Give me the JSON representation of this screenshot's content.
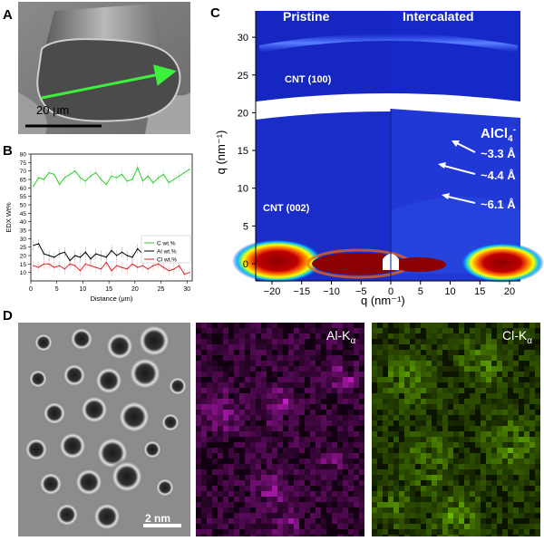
{
  "panels": {
    "a": {
      "letter": "A",
      "scale_bar": "20 μm"
    },
    "b": {
      "letter": "B"
    },
    "c": {
      "letter": "C",
      "label_left": "Pristine",
      "label_right": "Intercalated",
      "ring_100": "CNT (100)",
      "ring_002": "CNT (002)",
      "species": "AlCl",
      "species_sub": "4",
      "species_sup": "-",
      "spacings": [
        "~3.3 Å",
        "~4.4 Å",
        "~6.1 Å"
      ],
      "xlabel": "q (nm⁻¹)",
      "ylabel": "q (nm⁻¹)",
      "xticks": [
        "−20",
        "−15",
        "−10",
        "−5",
        "0",
        "5",
        "10",
        "15",
        "20"
      ],
      "yticks": [
        "0",
        "5",
        "10",
        "15",
        "20",
        "25",
        "30"
      ]
    },
    "d": {
      "letter": "D",
      "scale_bar": "2 nm",
      "map_al": "Al-K",
      "map_al_sub": "α",
      "map_cl": "Cl-K",
      "map_cl_sub": "α"
    }
  },
  "chart_data": {
    "type": "line",
    "ylabel": "EDX Wt%",
    "xlabel": "Distance (μm)",
    "xlim": [
      0,
      31
    ],
    "ylim": [
      5,
      80
    ],
    "xticks": [
      "0",
      "5",
      "10",
      "15",
      "20",
      "25",
      "30"
    ],
    "yticks": [
      "10",
      "15",
      "20",
      "25",
      "30",
      "35",
      "40",
      "45",
      "50",
      "55",
      "60",
      "65",
      "70",
      "75",
      "80"
    ],
    "legend_position": "lower-right",
    "series": [
      {
        "name": "C wt.%",
        "color": "#2ecc2e",
        "x": [
          0.5,
          1.5,
          2.5,
          3.5,
          4.5,
          5.5,
          6.5,
          7.5,
          8.5,
          9.5,
          10.5,
          11.5,
          12.5,
          13.5,
          14.5,
          15.5,
          16.5,
          17.5,
          18.5,
          19.5,
          20.5,
          21.5,
          22.5,
          23.5,
          24.5,
          25.5,
          26.5,
          27.5,
          28.5,
          29.5,
          30.5
        ],
        "values": [
          61,
          66,
          65,
          69,
          68,
          62,
          66,
          68,
          70,
          66,
          64,
          67,
          69,
          65,
          62,
          67,
          66,
          68,
          64,
          65,
          72,
          64,
          67,
          63,
          66,
          68,
          63,
          65,
          67,
          69,
          71
        ]
      },
      {
        "name": "Al wt.%",
        "color": "#000000",
        "x": [
          0.5,
          1.5,
          2.5,
          3.5,
          4.5,
          5.5,
          6.5,
          7.5,
          8.5,
          9.5,
          10.5,
          11.5,
          12.5,
          13.5,
          14.5,
          15.5,
          16.5,
          17.5,
          18.5,
          19.5,
          20.5,
          21.5,
          22.5,
          23.5,
          24.5,
          25.5,
          26.5,
          27.5,
          28.5,
          29.5,
          30.5
        ],
        "values": [
          26,
          27,
          21,
          20,
          19,
          21,
          22,
          17,
          20,
          19,
          22,
          18,
          21,
          20,
          19,
          23,
          20,
          22,
          20,
          19,
          24,
          21,
          22,
          19,
          23,
          20,
          21,
          18,
          22,
          19,
          20
        ]
      },
      {
        "name": "Cl wt.%",
        "color": "#e02020",
        "x": [
          0.5,
          1.5,
          2.5,
          3.5,
          4.5,
          5.5,
          6.5,
          7.5,
          8.5,
          9.5,
          10.5,
          11.5,
          12.5,
          13.5,
          14.5,
          15.5,
          16.5,
          17.5,
          18.5,
          19.5,
          20.5,
          21.5,
          22.5,
          23.5,
          24.5,
          25.5,
          26.5,
          27.5,
          28.5,
          29.5,
          30.5
        ],
        "values": [
          14,
          13,
          15,
          15,
          13,
          14,
          12,
          15,
          14,
          11,
          15,
          14,
          13,
          12,
          16,
          11,
          14,
          13,
          12,
          15,
          13,
          14,
          12,
          14,
          15,
          13,
          11,
          12,
          14,
          9,
          10
        ]
      }
    ]
  }
}
